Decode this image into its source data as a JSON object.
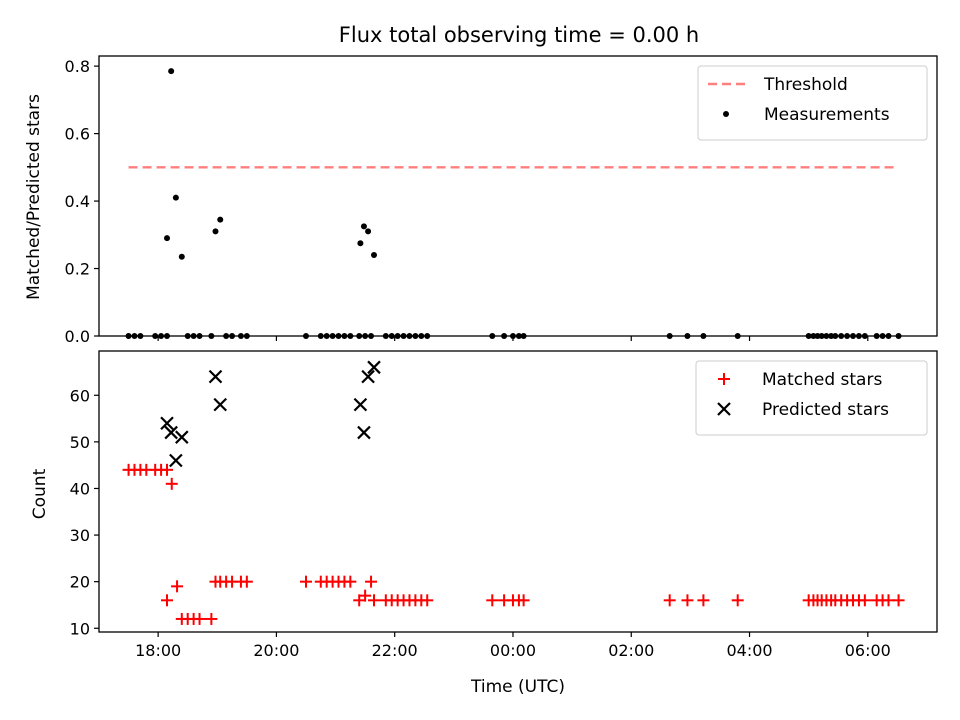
{
  "chart_data": [
    {
      "type": "scatter",
      "title": "Flux total observing time = 0.00 h",
      "xlabel": "",
      "ylabel": "Matched/Predicted stars",
      "xlim": [
        17.0,
        31.17
      ],
      "ylim": [
        0.0,
        0.83
      ],
      "yticks": [
        0.0,
        0.2,
        0.4,
        0.6,
        0.8
      ],
      "ytick_labels": [
        "0.0",
        "0.2",
        "0.4",
        "0.6",
        "0.8"
      ],
      "xticks": [
        18,
        20,
        22,
        24,
        26,
        28,
        30
      ],
      "threshold": {
        "name": "Threshold",
        "value": 0.5,
        "x_range": [
          17.5,
          30.5
        ],
        "color": "#ff7f7f",
        "style": "dashed"
      },
      "series": [
        {
          "name": "Measurements",
          "color": "#000000",
          "marker": "dot",
          "points": [
            [
              17.5,
              0
            ],
            [
              17.6,
              0
            ],
            [
              17.7,
              0
            ],
            [
              17.95,
              0
            ],
            [
              18.05,
              0
            ],
            [
              18.15,
              0
            ],
            [
              18.15,
              0.29
            ],
            [
              18.22,
              0.785
            ],
            [
              18.3,
              0.41
            ],
            [
              18.4,
              0.235
            ],
            [
              18.5,
              0
            ],
            [
              18.6,
              0
            ],
            [
              18.7,
              0
            ],
            [
              18.9,
              0
            ],
            [
              19.15,
              0
            ],
            [
              19.25,
              0
            ],
            [
              18.97,
              0.31
            ],
            [
              19.05,
              0.345
            ],
            [
              19.4,
              0
            ],
            [
              19.5,
              0
            ],
            [
              20.5,
              0
            ],
            [
              20.75,
              0
            ],
            [
              20.85,
              0
            ],
            [
              20.95,
              0
            ],
            [
              21.05,
              0
            ],
            [
              21.15,
              0
            ],
            [
              21.25,
              0
            ],
            [
              21.42,
              0.275
            ],
            [
              21.48,
              0.325
            ],
            [
              21.55,
              0.31
            ],
            [
              21.65,
              0.24
            ],
            [
              21.4,
              0
            ],
            [
              21.5,
              0
            ],
            [
              21.6,
              0
            ],
            [
              21.85,
              0
            ],
            [
              21.95,
              0
            ],
            [
              22.05,
              0
            ],
            [
              22.15,
              0
            ],
            [
              22.25,
              0
            ],
            [
              22.35,
              0
            ],
            [
              22.45,
              0
            ],
            [
              22.55,
              0
            ],
            [
              23.65,
              0
            ],
            [
              23.85,
              0
            ],
            [
              24.0,
              0
            ],
            [
              24.1,
              0
            ],
            [
              24.18,
              0
            ],
            [
              26.65,
              0
            ],
            [
              26.95,
              0
            ],
            [
              27.22,
              0
            ],
            [
              27.8,
              0
            ],
            [
              29.0,
              0
            ],
            [
              29.08,
              0
            ],
            [
              29.15,
              0
            ],
            [
              29.22,
              0
            ],
            [
              29.3,
              0
            ],
            [
              29.38,
              0
            ],
            [
              29.45,
              0
            ],
            [
              29.55,
              0
            ],
            [
              29.65,
              0
            ],
            [
              29.75,
              0
            ],
            [
              29.85,
              0
            ],
            [
              29.95,
              0
            ],
            [
              30.15,
              0
            ],
            [
              30.25,
              0
            ],
            [
              30.35,
              0
            ],
            [
              30.52,
              0
            ]
          ]
        }
      ],
      "legend": {
        "placement": "top-right",
        "entries": [
          "Threshold",
          "Measurements"
        ]
      }
    },
    {
      "type": "scatter",
      "xlabel": "Time (UTC)",
      "ylabel": "Count",
      "xlim": [
        17.0,
        31.17
      ],
      "ylim": [
        9.2,
        69.5
      ],
      "yticks": [
        10,
        20,
        30,
        40,
        50,
        60
      ],
      "ytick_labels": [
        "10",
        "20",
        "30",
        "40",
        "50",
        "60"
      ],
      "xticks": [
        18,
        20,
        22,
        24,
        26,
        28,
        30
      ],
      "xtick_labels": [
        "18:00",
        "20:00",
        "22:00",
        "00:00",
        "02:00",
        "04:00",
        "06:00"
      ],
      "series": [
        {
          "name": "Matched stars",
          "color": "#ff0000",
          "marker": "plus",
          "points": [
            [
              17.5,
              44
            ],
            [
              17.6,
              44
            ],
            [
              17.7,
              44
            ],
            [
              17.8,
              44
            ],
            [
              17.95,
              44
            ],
            [
              18.05,
              44
            ],
            [
              18.15,
              44
            ],
            [
              18.15,
              16
            ],
            [
              18.23,
              41
            ],
            [
              18.32,
              19
            ],
            [
              18.4,
              12
            ],
            [
              18.5,
              12
            ],
            [
              18.6,
              12
            ],
            [
              18.7,
              12
            ],
            [
              18.9,
              12
            ],
            [
              18.97,
              20
            ],
            [
              19.05,
              20
            ],
            [
              19.15,
              20
            ],
            [
              19.25,
              20
            ],
            [
              19.4,
              20
            ],
            [
              19.5,
              20
            ],
            [
              20.5,
              20
            ],
            [
              20.75,
              20
            ],
            [
              20.85,
              20
            ],
            [
              20.95,
              20
            ],
            [
              21.05,
              20
            ],
            [
              21.15,
              20
            ],
            [
              21.25,
              20
            ],
            [
              21.4,
              16
            ],
            [
              21.5,
              17
            ],
            [
              21.6,
              20
            ],
            [
              21.65,
              16
            ],
            [
              21.85,
              16
            ],
            [
              21.95,
              16
            ],
            [
              22.05,
              16
            ],
            [
              22.15,
              16
            ],
            [
              22.25,
              16
            ],
            [
              22.35,
              16
            ],
            [
              22.45,
              16
            ],
            [
              22.55,
              16
            ],
            [
              23.65,
              16
            ],
            [
              23.85,
              16
            ],
            [
              24.0,
              16
            ],
            [
              24.1,
              16
            ],
            [
              24.18,
              16
            ],
            [
              26.65,
              16
            ],
            [
              26.95,
              16
            ],
            [
              27.22,
              16
            ],
            [
              27.8,
              16
            ],
            [
              29.0,
              16
            ],
            [
              29.08,
              16
            ],
            [
              29.15,
              16
            ],
            [
              29.22,
              16
            ],
            [
              29.3,
              16
            ],
            [
              29.38,
              16
            ],
            [
              29.45,
              16
            ],
            [
              29.55,
              16
            ],
            [
              29.65,
              16
            ],
            [
              29.75,
              16
            ],
            [
              29.85,
              16
            ],
            [
              29.95,
              16
            ],
            [
              30.15,
              16
            ],
            [
              30.25,
              16
            ],
            [
              30.35,
              16
            ],
            [
              30.52,
              16
            ]
          ]
        },
        {
          "name": "Predicted stars",
          "color": "#000000",
          "marker": "x",
          "points": [
            [
              18.15,
              54
            ],
            [
              18.22,
              52
            ],
            [
              18.3,
              46
            ],
            [
              18.4,
              51
            ],
            [
              18.97,
              64
            ],
            [
              19.05,
              58
            ],
            [
              21.42,
              58
            ],
            [
              21.48,
              52
            ],
            [
              21.55,
              64
            ],
            [
              21.65,
              66
            ]
          ]
        }
      ],
      "legend": {
        "placement": "top-right",
        "entries": [
          "Matched stars",
          "Predicted stars"
        ]
      }
    }
  ]
}
